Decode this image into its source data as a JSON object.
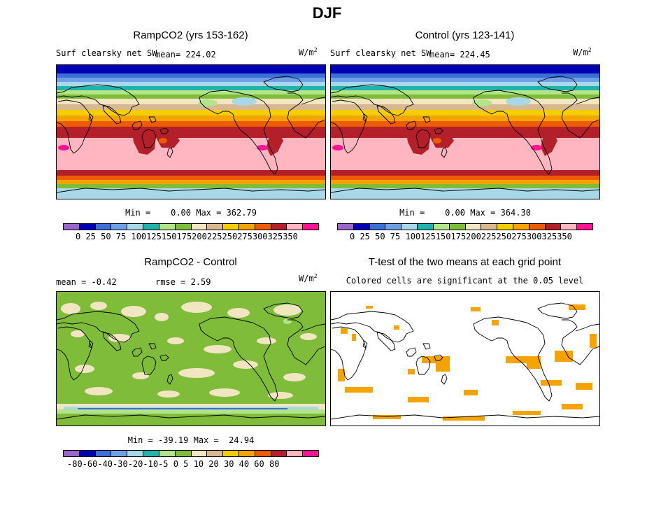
{
  "title": "DJF",
  "panels": {
    "rampco2": {
      "title": "RampCO2 (yrs 153-162)",
      "variable": "Surf clearsky net SW",
      "mean_text": "mean= 224.02",
      "units": "W/m",
      "units_exp": "2",
      "stats": "Min =    0.00 Max = 362.79"
    },
    "control": {
      "title": "Control (yrs 123-141)",
      "variable": "Surf clearsky net SW",
      "mean_text": "mean= 224.45",
      "units": "W/m",
      "units_exp": "2",
      "stats": "Min =    0.00 Max = 364.30"
    },
    "diff": {
      "title": "RampCO2 - Control",
      "mean_text": "mean =   -0.42",
      "rmse_text": "rmse =    2.59",
      "units": "W/m",
      "units_exp": "2",
      "stats": "Min = -39.19 Max =  24.94"
    },
    "ttest": {
      "title": "T-test of the two means at each grid point",
      "subtitle": "Colored cells are significant at the 0.05 level"
    }
  },
  "colorbars": {
    "absolute": {
      "labels_text": "0  25  50  75 100125150175200225250275300325350",
      "colors": [
        "#9966cc",
        "#0000b4",
        "#3c6fd8",
        "#6fa0e6",
        "#a8d8e8",
        "#1fb5ad",
        "#b2e58a",
        "#7ebc3a",
        "#f2e6c2",
        "#d8b88e",
        "#f4cf00",
        "#f4a300",
        "#ee5c00",
        "#b4202a",
        "#ffb6c1",
        "#ff1493"
      ]
    },
    "difference": {
      "labels_text": "-80-60-40-30-20-10-5  0   5  10  20  30  40  60  80",
      "colors": [
        "#9966cc",
        "#0000b4",
        "#3c6fd8",
        "#6fa0e6",
        "#a8d8e8",
        "#1fb5ad",
        "#b2e58a",
        "#7ebc3a",
        "#f2e6c2",
        "#d8b88e",
        "#f4cf00",
        "#f4a300",
        "#ee5c00",
        "#b4202a",
        "#ffb6c1",
        "#ff1493"
      ]
    }
  },
  "chart_data": [
    {
      "type": "heatmap",
      "title": "RampCO2 (yrs 153-162)",
      "variable": "Surf clearsky net SW",
      "units": "W/m2",
      "mean": 224.02,
      "min": 0.0,
      "max": 362.79,
      "levels": [
        0,
        25,
        50,
        75,
        100,
        125,
        150,
        175,
        200,
        225,
        250,
        275,
        300,
        325,
        350
      ]
    },
    {
      "type": "heatmap",
      "title": "Control (yrs 123-141)",
      "variable": "Surf clearsky net SW",
      "units": "W/m2",
      "mean": 224.45,
      "min": 0.0,
      "max": 364.3,
      "levels": [
        0,
        25,
        50,
        75,
        100,
        125,
        150,
        175,
        200,
        225,
        250,
        275,
        300,
        325,
        350
      ]
    },
    {
      "type": "heatmap",
      "title": "RampCO2 - Control",
      "units": "W/m2",
      "mean": -0.42,
      "rmse": 2.59,
      "min": -39.19,
      "max": 24.94,
      "levels": [
        -80,
        -60,
        -40,
        -30,
        -20,
        -10,
        -5,
        0,
        5,
        10,
        20,
        30,
        40,
        60,
        80
      ]
    },
    {
      "type": "heatmap",
      "title": "T-test of the two means at each grid point",
      "subtitle": "Colored cells are significant at the 0.05 level",
      "significant_color": "#f5a300"
    }
  ]
}
